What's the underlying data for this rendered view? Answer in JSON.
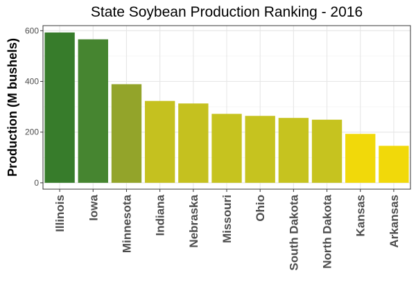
{
  "chart_data": {
    "type": "bar",
    "title": "State Soybean Production Ranking - 2016",
    "xlabel": "",
    "ylabel": "Production (M bushels)",
    "categories": [
      "Illinois",
      "Iowa",
      "Minnesota",
      "Indiana",
      "Nebraska",
      "Missouri",
      "Ohio",
      "South Dakota",
      "North Dakota",
      "Kansas",
      "Arkansas"
    ],
    "values": [
      593,
      566,
      389,
      323,
      313,
      272,
      264,
      256,
      249,
      193,
      146
    ],
    "bar_colors": [
      "#377c2b",
      "#468530",
      "#93a42a",
      "#c5c11f",
      "#c5c11f",
      "#c6c31f",
      "#c6c31f",
      "#c6c31f",
      "#c6c31f",
      "#f1d90a",
      "#f1d90a"
    ],
    "ylim": [
      -25,
      620
    ],
    "yticks": [
      0,
      200,
      400,
      600
    ],
    "grid": true
  }
}
